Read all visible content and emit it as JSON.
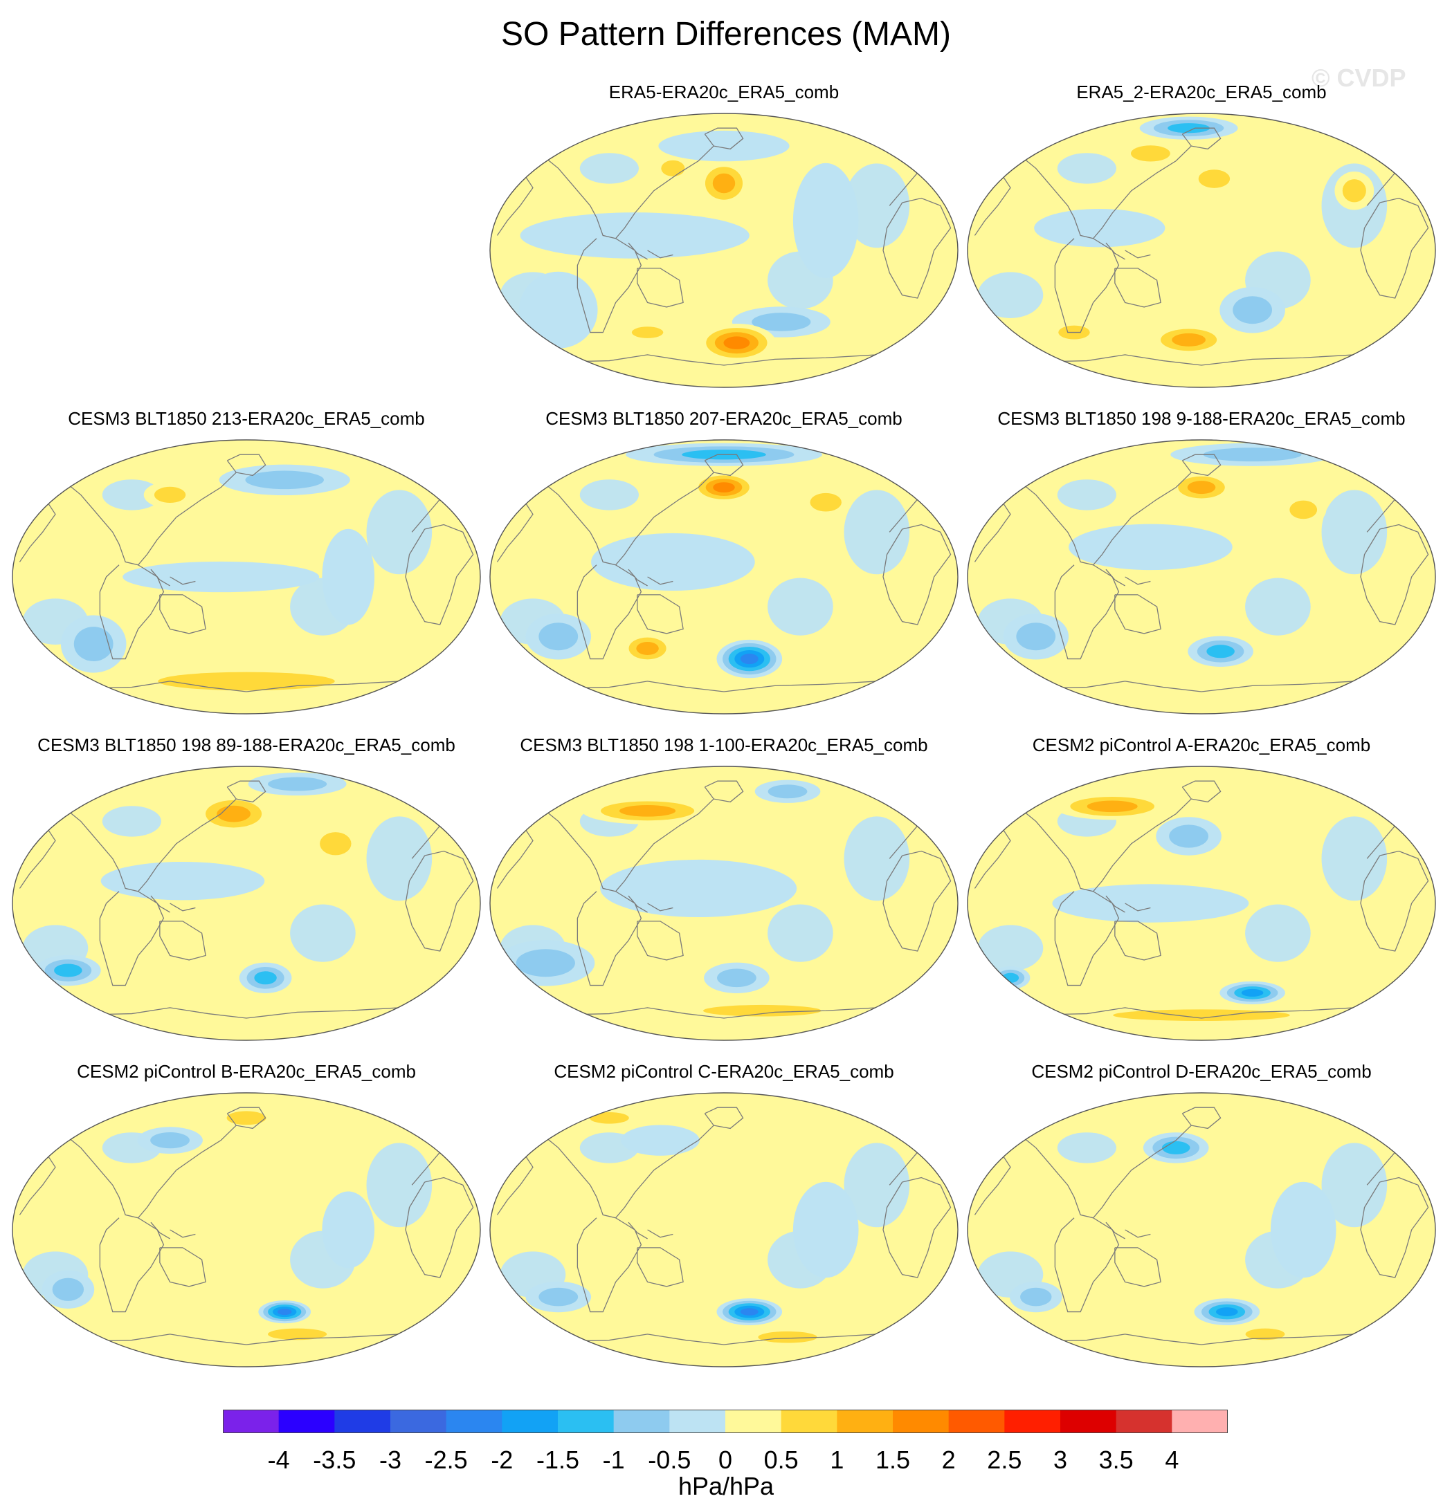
{
  "title": "SO Pattern Differences (MAM)",
  "watermark": "© CVDP",
  "colors": {
    "levels": [
      "#7b22ea",
      "#2b00ff",
      "#1f3ce6",
      "#3b69e0",
      "#2b86f0",
      "#12a2f5",
      "#2bbff2",
      "#8ecbef",
      "#bde3f3",
      "#fff99a",
      "#ffd93a",
      "#ffb012",
      "#ff8a00",
      "#ff5a00",
      "#ff1f00",
      "#dd0000",
      "#d6322e",
      "#ffb0b0"
    ],
    "coast": "#7a7a7a",
    "border": "#555555"
  },
  "colorbar": {
    "labels": [
      "-4",
      "-3.5",
      "-3",
      "-2.5",
      "-2",
      "-1.5",
      "-1",
      "-0.5",
      "0",
      "0.5",
      "1",
      "1.5",
      "2",
      "2.5",
      "3",
      "3.5",
      "4"
    ],
    "units": "hPa/hPa"
  },
  "panels": [
    {
      "title": "ERA5-ERA20c_ERA5_comb",
      "present": true,
      "blobs": [
        {
          "lon": 0,
          "lat": 45,
          "rx": 0.08,
          "ry": 0.12,
          "level": 11
        },
        {
          "lon": -40,
          "lat": 55,
          "rx": 0.06,
          "ry": 0.07,
          "level": 10
        },
        {
          "lon": -70,
          "lat": 10,
          "rx": 0.35,
          "ry": 0.12,
          "level": 8
        },
        {
          "lon": 80,
          "lat": 20,
          "rx": 0.1,
          "ry": 0.3,
          "level": 8
        },
        {
          "lon": 45,
          "lat": -48,
          "rx": 0.15,
          "ry": 0.08,
          "level": 7
        },
        {
          "lon": 10,
          "lat": -62,
          "rx": 0.12,
          "ry": 0.1,
          "level": 12
        },
        {
          "lon": -60,
          "lat": -55,
          "rx": 0.08,
          "ry": 0.05,
          "level": 10
        },
        {
          "lon": -130,
          "lat": -40,
          "rx": 0.12,
          "ry": 0.2,
          "level": 8
        },
        {
          "lon": 0,
          "lat": 70,
          "rx": 0.2,
          "ry": 0.08,
          "level": 8
        }
      ]
    },
    {
      "title": "ERA5_2-ERA20c_ERA5_comb",
      "present": true,
      "blobs": [
        {
          "lon": -10,
          "lat": 82,
          "rx": 0.15,
          "ry": 0.06,
          "level": 6
        },
        {
          "lon": -40,
          "lat": 65,
          "rx": 0.1,
          "ry": 0.07,
          "level": 10
        },
        {
          "lon": 10,
          "lat": 48,
          "rx": 0.08,
          "ry": 0.08,
          "level": 10
        },
        {
          "lon": -80,
          "lat": 15,
          "rx": 0.2,
          "ry": 0.1,
          "level": 8
        },
        {
          "lon": 40,
          "lat": -40,
          "rx": 0.1,
          "ry": 0.12,
          "level": 7
        },
        {
          "lon": -10,
          "lat": -60,
          "rx": 0.12,
          "ry": 0.08,
          "level": 11
        },
        {
          "lon": -100,
          "lat": -55,
          "rx": 0.08,
          "ry": 0.06,
          "level": 10
        },
        {
          "lon": 120,
          "lat": 40,
          "rx": 0.06,
          "ry": 0.1,
          "level": 10
        }
      ]
    },
    {
      "title": "CESM3 BLT1850 213-ERA20c_ERA5_comb",
      "present": true,
      "blobs": [
        {
          "lon": 30,
          "lat": 65,
          "rx": 0.2,
          "ry": 0.08,
          "level": 7
        },
        {
          "lon": -60,
          "lat": 55,
          "rx": 0.08,
          "ry": 0.07,
          "level": 10
        },
        {
          "lon": -20,
          "lat": 0,
          "rx": 0.3,
          "ry": 0.08,
          "level": 8
        },
        {
          "lon": -120,
          "lat": -45,
          "rx": 0.1,
          "ry": 0.15,
          "level": 7
        },
        {
          "lon": 0,
          "lat": -70,
          "rx": 0.45,
          "ry": 0.08,
          "level": 10
        },
        {
          "lon": 80,
          "lat": 0,
          "rx": 0.08,
          "ry": 0.25,
          "level": 8
        }
      ]
    },
    {
      "title": "CESM3 BLT1850 207-ERA20c_ERA5_comb",
      "present": true,
      "blobs": [
        {
          "lon": 0,
          "lat": 82,
          "rx": 0.3,
          "ry": 0.06,
          "level": 6
        },
        {
          "lon": 0,
          "lat": 60,
          "rx": 0.1,
          "ry": 0.08,
          "level": 12
        },
        {
          "lon": -40,
          "lat": 10,
          "rx": 0.25,
          "ry": 0.15,
          "level": 8
        },
        {
          "lon": 20,
          "lat": -55,
          "rx": 0.1,
          "ry": 0.1,
          "level": 4
        },
        {
          "lon": -60,
          "lat": -48,
          "rx": 0.08,
          "ry": 0.08,
          "level": 11
        },
        {
          "lon": -130,
          "lat": -40,
          "rx": 0.1,
          "ry": 0.12,
          "level": 7
        },
        {
          "lon": 80,
          "lat": 50,
          "rx": 0.08,
          "ry": 0.08,
          "level": 10
        }
      ]
    },
    {
      "title": "CESM3 BLT1850 198 9-188-ERA20c_ERA5_comb",
      "present": true,
      "blobs": [
        {
          "lon": 40,
          "lat": 82,
          "rx": 0.25,
          "ry": 0.06,
          "level": 7
        },
        {
          "lon": 0,
          "lat": 60,
          "rx": 0.1,
          "ry": 0.08,
          "level": 11
        },
        {
          "lon": -40,
          "lat": 20,
          "rx": 0.25,
          "ry": 0.12,
          "level": 8
        },
        {
          "lon": 15,
          "lat": -50,
          "rx": 0.1,
          "ry": 0.08,
          "level": 6
        },
        {
          "lon": -130,
          "lat": -40,
          "rx": 0.1,
          "ry": 0.12,
          "level": 7
        },
        {
          "lon": 80,
          "lat": 45,
          "rx": 0.07,
          "ry": 0.08,
          "level": 10
        }
      ]
    },
    {
      "title": "CESM3 BLT1850 198 89-188-ERA20c_ERA5_comb",
      "present": true,
      "blobs": [
        {
          "lon": -10,
          "lat": 60,
          "rx": 0.12,
          "ry": 0.1,
          "level": 11
        },
        {
          "lon": 40,
          "lat": 80,
          "rx": 0.15,
          "ry": 0.06,
          "level": 7
        },
        {
          "lon": -50,
          "lat": 15,
          "rx": 0.25,
          "ry": 0.1,
          "level": 8
        },
        {
          "lon": 15,
          "lat": -50,
          "rx": 0.08,
          "ry": 0.08,
          "level": 6
        },
        {
          "lon": -140,
          "lat": -45,
          "rx": 0.1,
          "ry": 0.08,
          "level": 6
        },
        {
          "lon": 70,
          "lat": 40,
          "rx": 0.08,
          "ry": 0.1,
          "level": 10
        }
      ]
    },
    {
      "title": "CESM3 BLT1850 198 1-100-ERA20c_ERA5_comb",
      "present": true,
      "blobs": [
        {
          "lon": -60,
          "lat": 62,
          "rx": 0.2,
          "ry": 0.07,
          "level": 11
        },
        {
          "lon": 50,
          "lat": 75,
          "rx": 0.1,
          "ry": 0.06,
          "level": 7
        },
        {
          "lon": -20,
          "lat": 10,
          "rx": 0.3,
          "ry": 0.15,
          "level": 8
        },
        {
          "lon": -140,
          "lat": -40,
          "rx": 0.15,
          "ry": 0.12,
          "level": 7
        },
        {
          "lon": 10,
          "lat": -50,
          "rx": 0.1,
          "ry": 0.08,
          "level": 7
        },
        {
          "lon": 30,
          "lat": -72,
          "rx": 0.3,
          "ry": 0.05,
          "level": 10
        }
      ]
    },
    {
      "title": "CESM2 piControl A-ERA20c_ERA5_comb",
      "present": true,
      "blobs": [
        {
          "lon": -70,
          "lat": 65,
          "rx": 0.18,
          "ry": 0.07,
          "level": 11
        },
        {
          "lon": -10,
          "lat": 45,
          "rx": 0.1,
          "ry": 0.1,
          "level": 7
        },
        {
          "lon": 40,
          "lat": -60,
          "rx": 0.1,
          "ry": 0.06,
          "level": 5
        },
        {
          "lon": -150,
          "lat": -50,
          "rx": 0.06,
          "ry": 0.06,
          "level": 6
        },
        {
          "lon": 0,
          "lat": -75,
          "rx": 0.45,
          "ry": 0.05,
          "level": 10
        },
        {
          "lon": -40,
          "lat": 0,
          "rx": 0.3,
          "ry": 0.1,
          "level": 8
        }
      ]
    },
    {
      "title": "CESM2 piControl B-ERA20c_ERA5_comb",
      "present": true,
      "blobs": [
        {
          "lon": -60,
          "lat": 60,
          "rx": 0.1,
          "ry": 0.07,
          "level": 7
        },
        {
          "lon": 0,
          "lat": 75,
          "rx": 0.1,
          "ry": 0.06,
          "level": 10
        },
        {
          "lon": 30,
          "lat": -55,
          "rx": 0.08,
          "ry": 0.06,
          "level": 4
        },
        {
          "lon": -140,
          "lat": -40,
          "rx": 0.08,
          "ry": 0.1,
          "level": 7
        },
        {
          "lon": 40,
          "lat": -70,
          "rx": 0.15,
          "ry": 0.05,
          "level": 10
        },
        {
          "lon": 80,
          "lat": 0,
          "rx": 0.08,
          "ry": 0.2,
          "level": 8
        }
      ]
    },
    {
      "title": "CESM2 piControl C-ERA20c_ERA5_comb",
      "present": true,
      "blobs": [
        {
          "lon": -50,
          "lat": 60,
          "rx": 0.12,
          "ry": 0.08,
          "level": 8
        },
        {
          "lon": -90,
          "lat": 75,
          "rx": 0.1,
          "ry": 0.05,
          "level": 10
        },
        {
          "lon": 20,
          "lat": -55,
          "rx": 0.1,
          "ry": 0.07,
          "level": 4
        },
        {
          "lon": -130,
          "lat": -45,
          "rx": 0.1,
          "ry": 0.08,
          "level": 7
        },
        {
          "lon": 50,
          "lat": -72,
          "rx": 0.15,
          "ry": 0.05,
          "level": 10
        },
        {
          "lon": 80,
          "lat": 0,
          "rx": 0.1,
          "ry": 0.25,
          "level": 8
        }
      ]
    },
    {
      "title": "CESM2 piControl D-ERA20c_ERA5_comb",
      "present": true,
      "blobs": [
        {
          "lon": -20,
          "lat": 55,
          "rx": 0.1,
          "ry": 0.08,
          "level": 6
        },
        {
          "lon": 20,
          "lat": -55,
          "rx": 0.1,
          "ry": 0.07,
          "level": 5
        },
        {
          "lon": -130,
          "lat": -45,
          "rx": 0.08,
          "ry": 0.08,
          "level": 7
        },
        {
          "lon": 50,
          "lat": -70,
          "rx": 0.1,
          "ry": 0.05,
          "level": 10
        },
        {
          "lon": 80,
          "lat": 0,
          "rx": 0.1,
          "ry": 0.25,
          "level": 8
        }
      ]
    }
  ]
}
